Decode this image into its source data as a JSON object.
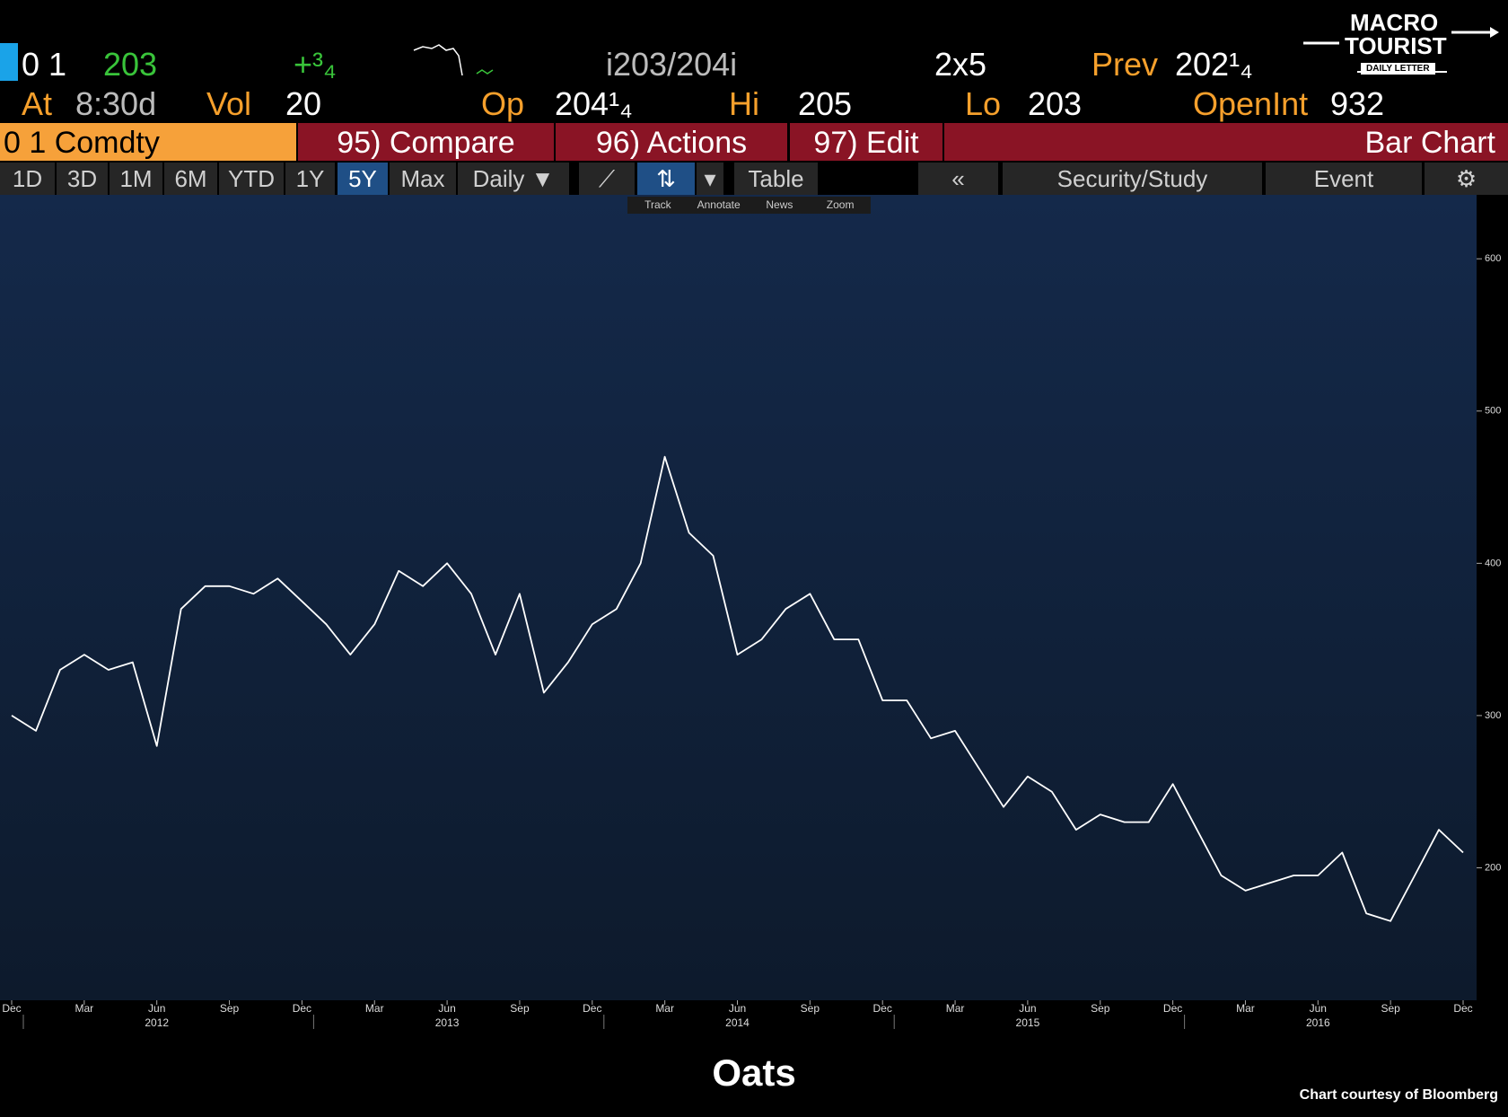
{
  "header": {
    "row1": {
      "ticker": "0 1",
      "last": "203",
      "change": "+³₄",
      "bid_ask": "i203/204i",
      "size": "2x5",
      "prev_label": "Prev",
      "prev": "202¹₄"
    },
    "row2": {
      "at_label": "At",
      "time": "8:30d",
      "vol_label": "Vol",
      "vol": "20",
      "op_label": "Op",
      "op": "204¹₄",
      "hi_label": "Hi",
      "hi": "205",
      "lo_label": "Lo",
      "lo": "203",
      "oi_label": "OpenInt",
      "oi": "932"
    }
  },
  "logo": {
    "line1": "MACRO",
    "line2": "TOURIST",
    "line3": "DAILY LETTER"
  },
  "tabs": [
    "0 1 Comdty",
    "95) Compare",
    "96) Actions",
    "97) Edit",
    "Bar Chart"
  ],
  "toolbar": {
    "ranges": [
      "1D",
      "3D",
      "1M",
      "6M",
      "YTD",
      "1Y",
      "5Y",
      "Max"
    ],
    "period": "Daily",
    "table": "Table",
    "study": "Security/Study",
    "event": "Event"
  },
  "mini_tools": [
    "Track",
    "Annotate",
    "News",
    "Zoom"
  ],
  "chart_data": {
    "type": "line",
    "title": "Oats",
    "credit": "Chart courtesy of Bloomberg",
    "x": [
      "2011-12",
      "2012-01",
      "2012-02",
      "2012-03",
      "2012-04",
      "2012-05",
      "2012-06",
      "2012-07",
      "2012-08",
      "2012-09",
      "2012-10",
      "2012-11",
      "2012-12",
      "2013-01",
      "2013-02",
      "2013-03",
      "2013-04",
      "2013-05",
      "2013-06",
      "2013-07",
      "2013-08",
      "2013-09",
      "2013-10",
      "2013-11",
      "2013-12",
      "2014-01",
      "2014-02",
      "2014-03",
      "2014-04",
      "2014-05",
      "2014-06",
      "2014-07",
      "2014-08",
      "2014-09",
      "2014-10",
      "2014-11",
      "2014-12",
      "2015-01",
      "2015-02",
      "2015-03",
      "2015-04",
      "2015-05",
      "2015-06",
      "2015-07",
      "2015-08",
      "2015-09",
      "2015-10",
      "2015-11",
      "2015-12",
      "2016-01",
      "2016-02",
      "2016-03",
      "2016-04",
      "2016-05",
      "2016-06",
      "2016-07",
      "2016-08",
      "2016-09",
      "2016-10",
      "2016-11",
      "2016-12"
    ],
    "values": [
      300,
      290,
      330,
      340,
      330,
      335,
      280,
      370,
      385,
      385,
      380,
      390,
      375,
      360,
      340,
      360,
      395,
      385,
      400,
      380,
      340,
      380,
      315,
      335,
      360,
      370,
      400,
      470,
      420,
      405,
      340,
      350,
      370,
      380,
      350,
      350,
      310,
      310,
      285,
      290,
      265,
      240,
      260,
      250,
      225,
      235,
      230,
      230,
      255,
      225,
      195,
      185,
      190,
      195,
      195,
      210,
      170,
      165,
      195,
      225,
      210
    ],
    "color": "#ffffff",
    "ylim": [
      113,
      642
    ],
    "yticks": [
      200,
      300,
      400,
      500,
      600
    ],
    "xticks": [
      {
        "value": "2011-12",
        "label": "Dec"
      },
      {
        "value": "2012-03",
        "label": "Mar"
      },
      {
        "value": "2012-06",
        "label": "Jun"
      },
      {
        "value": "2012-09",
        "label": "Sep"
      },
      {
        "value": "2012-12",
        "label": "Dec"
      },
      {
        "value": "2013-03",
        "label": "Mar"
      },
      {
        "value": "2013-06",
        "label": "Jun"
      },
      {
        "value": "2013-09",
        "label": "Sep"
      },
      {
        "value": "2013-12",
        "label": "Dec"
      },
      {
        "value": "2014-03",
        "label": "Mar"
      },
      {
        "value": "2014-06",
        "label": "Jun"
      },
      {
        "value": "2014-09",
        "label": "Sep"
      },
      {
        "value": "2014-12",
        "label": "Dec"
      },
      {
        "value": "2015-03",
        "label": "Mar"
      },
      {
        "value": "2015-06",
        "label": "Jun"
      },
      {
        "value": "2015-09",
        "label": "Sep"
      },
      {
        "value": "2015-12",
        "label": "Dec"
      },
      {
        "value": "2016-03",
        "label": "Mar"
      },
      {
        "value": "2016-06",
        "label": "Jun"
      },
      {
        "value": "2016-09",
        "label": "Sep"
      },
      {
        "value": "2016-12",
        "label": "Dec"
      }
    ],
    "year_ticks": [
      {
        "value": "2012-06",
        "label": "2012"
      },
      {
        "value": "2013-06",
        "label": "2013"
      },
      {
        "value": "2014-06",
        "label": "2014"
      },
      {
        "value": "2015-06",
        "label": "2015"
      },
      {
        "value": "2016-06",
        "label": "2016"
      }
    ]
  }
}
